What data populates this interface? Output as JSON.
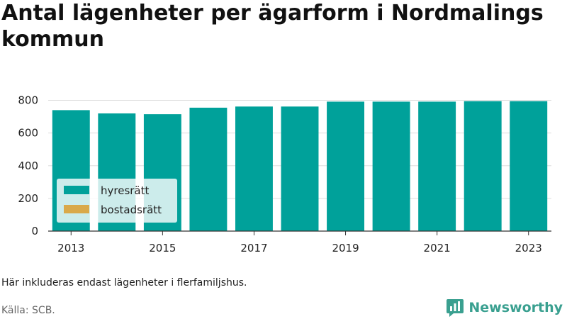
{
  "title": "Antal lägenheter per ägarform i Nordmalings kommun",
  "note": "Här inkluderas endast lägenheter i flerfamiljshus.",
  "source": "Källa: SCB.",
  "brand": {
    "name": "Newsworthy",
    "logo_icon": "bar-chart-speech-bubble-icon",
    "color": "#3aa090"
  },
  "chart_data": {
    "type": "bar",
    "stacked": true,
    "categories": [
      "2013",
      "2014",
      "2015",
      "2016",
      "2017",
      "2018",
      "2019",
      "2020",
      "2021",
      "2022",
      "2023"
    ],
    "series": [
      {
        "name": "hyresrätt",
        "color": "#00a19a",
        "values": [
          740,
          720,
          715,
          755,
          762,
          762,
          792,
          792,
          792,
          795,
          795
        ]
      },
      {
        "name": "bostadsrätt",
        "color": "#d9a94a",
        "values": [
          0,
          0,
          0,
          0,
          0,
          0,
          0,
          0,
          0,
          0,
          0
        ]
      }
    ],
    "xticks": [
      "2013",
      "2015",
      "2017",
      "2019",
      "2021",
      "2023"
    ],
    "yticks": [
      0,
      200,
      400,
      600,
      800
    ],
    "ylim": [
      0,
      850
    ],
    "grid": true,
    "legend_position": "bottom-left"
  }
}
